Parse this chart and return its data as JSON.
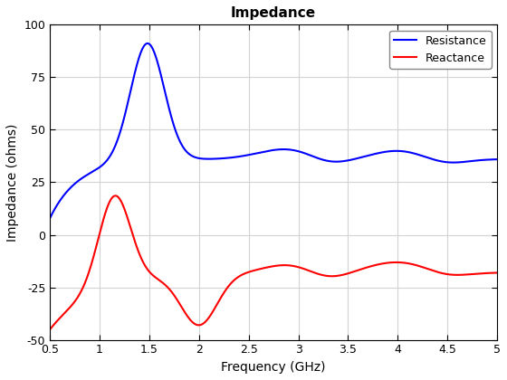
{
  "title": "Impedance",
  "xlabel": "Frequency (GHz)",
  "ylabel": "Impedance (ohms)",
  "xlim": [
    0.5,
    5.0
  ],
  "ylim": [
    -50,
    100
  ],
  "xticks": [
    0.5,
    1.0,
    1.5,
    2.0,
    2.5,
    3.0,
    3.5,
    4.0,
    4.5,
    5.0
  ],
  "yticks": [
    -50,
    -25,
    0,
    25,
    50,
    75,
    100
  ],
  "resistance_color": "#0000FF",
  "reactance_color": "#FF0000",
  "line_width": 1.5,
  "legend_labels": [
    "Resistance",
    "Reactance"
  ],
  "background_color": "#FFFFFF",
  "grid_color": "#D3D3D3"
}
